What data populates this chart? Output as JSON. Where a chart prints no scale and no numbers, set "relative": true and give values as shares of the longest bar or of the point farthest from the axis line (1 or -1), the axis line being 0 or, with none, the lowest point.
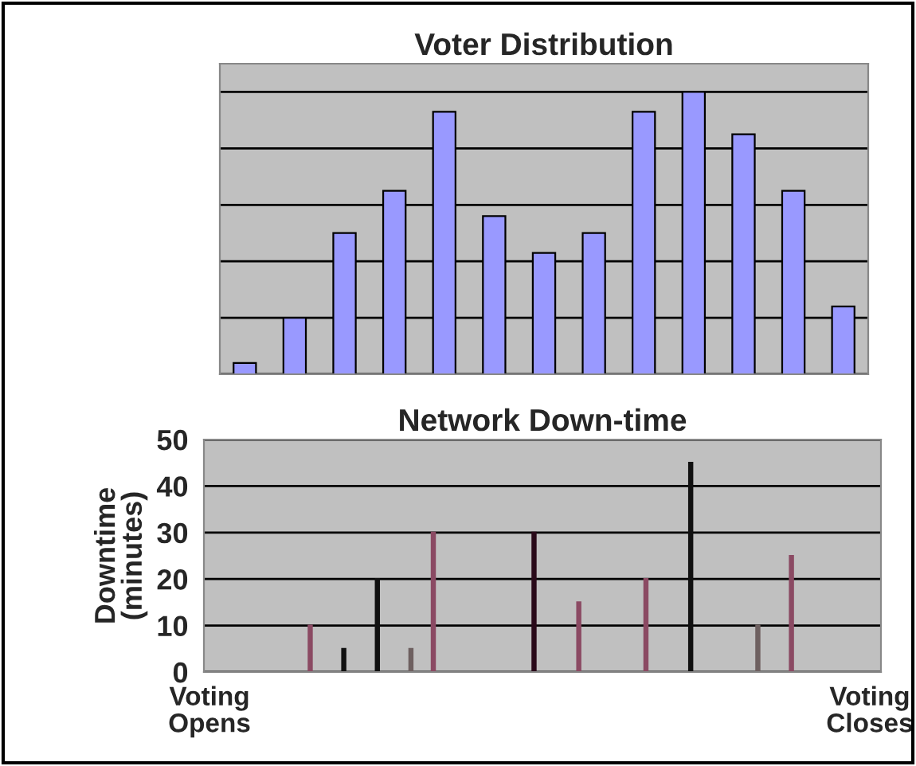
{
  "chart_data": [
    {
      "type": "bar",
      "title": "Voter Distribution",
      "relative": true,
      "grid": true,
      "color": "#9999ff",
      "categories": [
        null,
        null,
        null,
        null,
        null,
        null,
        null,
        null,
        null,
        null,
        null,
        null,
        null
      ],
      "values": [
        0.04,
        0.2,
        0.5,
        0.65,
        0.93,
        0.56,
        0.43,
        0.5,
        0.93,
        1,
        0.85,
        0.65,
        0.24
      ]
    },
    {
      "type": "bar",
      "title": "Network Down-time",
      "ylabel": "Downtime\n(minutes)",
      "grid": "y",
      "ylim": [
        0,
        50
      ],
      "yticks": [
        0,
        10,
        20,
        30,
        40,
        50
      ],
      "categories": [
        "Voting\nOpens",
        null,
        null,
        null,
        null,
        null,
        null,
        null,
        null,
        null,
        null,
        null,
        null,
        null,
        null,
        null,
        null,
        null,
        null,
        null,
        null,
        null,
        null,
        null,
        null,
        null,
        null,
        null,
        null,
        null,
        null,
        null,
        null,
        null,
        null,
        null,
        null,
        null,
        null,
        null,
        null,
        null,
        null,
        null,
        null,
        null,
        null,
        null,
        null,
        null,
        null,
        null,
        null,
        null,
        null,
        null,
        null,
        null,
        null,
        "Voting\nCloses"
      ],
      "values": [
        null,
        null,
        null,
        null,
        null,
        null,
        null,
        null,
        null,
        10,
        null,
        null,
        5,
        null,
        null,
        20,
        null,
        null,
        5,
        null,
        30,
        null,
        null,
        null,
        null,
        null,
        null,
        null,
        null,
        30,
        null,
        null,
        null,
        15,
        null,
        null,
        null,
        null,
        null,
        20,
        null,
        null,
        null,
        45,
        null,
        null,
        null,
        null,
        null,
        10,
        null,
        null,
        25,
        null,
        null,
        null,
        null,
        null,
        null,
        null
      ],
      "colors": [
        null,
        null,
        null,
        null,
        null,
        null,
        null,
        null,
        null,
        "#8b4a63",
        null,
        null,
        "#111111",
        null,
        null,
        "#111111",
        null,
        null,
        "#6e6060",
        null,
        "#8b4a63",
        null,
        null,
        null,
        null,
        null,
        null,
        null,
        null,
        "#2a0a1a",
        null,
        null,
        null,
        "#8b4a63",
        null,
        null,
        null,
        null,
        null,
        "#8b4a63",
        null,
        null,
        null,
        "#111111",
        null,
        null,
        null,
        null,
        null,
        "#6e6060",
        null,
        null,
        "#8b4a63",
        null,
        null,
        null,
        null,
        null,
        null,
        null
      ]
    }
  ]
}
